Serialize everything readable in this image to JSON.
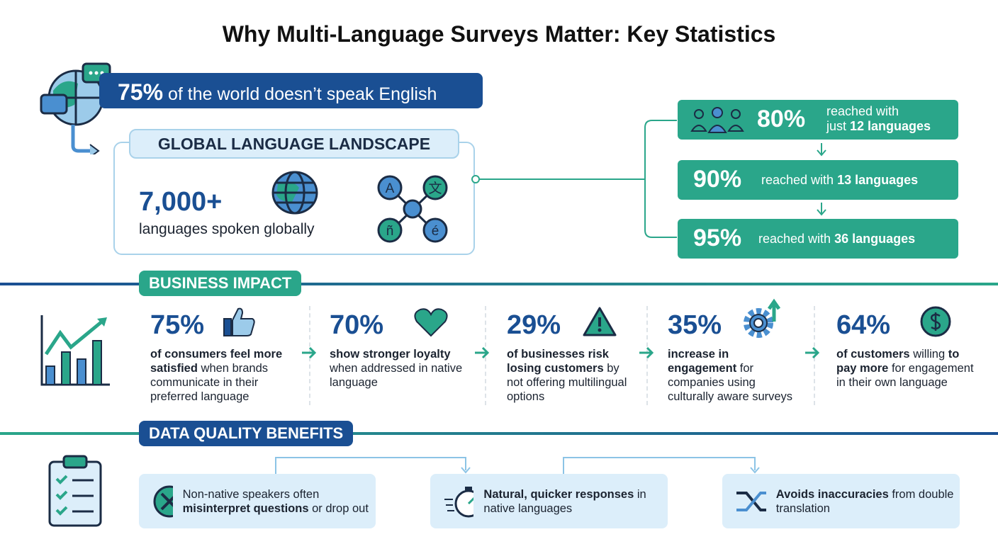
{
  "title": "Why Multi-Language Surveys Matter: Key Statistics",
  "banner": {
    "pct": "75%",
    "text": "of the world doesn’t speak English"
  },
  "landscape": {
    "title": "GLOBAL LANGUAGE LANDSCAPE",
    "count": "7,000+",
    "caption": "languages spoken globally",
    "glyphs": [
      "A",
      "文",
      "ñ",
      "é"
    ]
  },
  "reach": [
    {
      "pct": "80%",
      "text1": "reached with",
      "text2_pre": "just ",
      "text2_bold": "12 languages"
    },
    {
      "pct": "90%",
      "text_pre": "reached with ",
      "text_bold": "13 languages"
    },
    {
      "pct": "95%",
      "text_pre": "reached with ",
      "text_bold": "36 languages"
    }
  ],
  "business": {
    "title": "BUSINESS IMPACT",
    "stats": [
      {
        "pct": "75%",
        "bold": "of consumers feel more satisfied",
        "rest": " when brands communicate in their preferred language"
      },
      {
        "pct": "70%",
        "bold": "show stronger loyalty",
        "rest": " when addressed in native language"
      },
      {
        "pct": "29%",
        "bold": "of businesses risk losing customers",
        "rest": " by not offering multilingual options"
      },
      {
        "pct": "35%",
        "bold": "increase in engagement",
        "rest": " for companies using culturally aware surveys"
      },
      {
        "pct": "64%",
        "bold": "of customers",
        "rest": " willing ",
        "bold2": "to pay more",
        "rest2": " for engagement in their own language"
      }
    ]
  },
  "quality": {
    "title": "DATA QUALITY BENEFITS",
    "items": [
      {
        "pre": "Non-native speakers often ",
        "bold": "misinterpret questions",
        "post": " or drop out"
      },
      {
        "pre": "",
        "bold": "Natural, quicker responses",
        "post": " in native languages"
      },
      {
        "pre": "",
        "bold": "Avoids inaccuracies",
        "post": " from double translation"
      }
    ]
  },
  "colors": {
    "navy": "#1a4f93",
    "teal": "#2aa68a",
    "light": "#dceefa"
  }
}
